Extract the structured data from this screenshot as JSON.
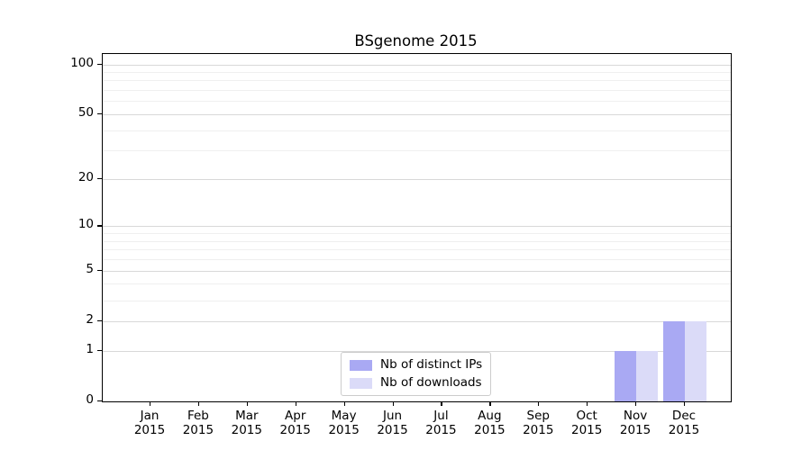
{
  "title": "BSgenome 2015",
  "colors": {
    "distinct_ips": "#a9a9f3",
    "downloads": "#dbdbf8",
    "grid_major": "#d8d8d8",
    "grid_minor": "#efefef",
    "axis_frame": "#000000",
    "legend_border": "#cccccc",
    "background": "#ffffff",
    "text": "#000000"
  },
  "legend": {
    "entries": [
      {
        "label": "Nb of distinct IPs",
        "color": "#a9a9f3"
      },
      {
        "label": "Nb of downloads",
        "color": "#dbdbf8"
      }
    ]
  },
  "chart_data": {
    "type": "bar",
    "title": "BSgenome 2015",
    "categories": [
      {
        "month": "Jan",
        "year": "2015"
      },
      {
        "month": "Feb",
        "year": "2015"
      },
      {
        "month": "Mar",
        "year": "2015"
      },
      {
        "month": "Apr",
        "year": "2015"
      },
      {
        "month": "May",
        "year": "2015"
      },
      {
        "month": "Jun",
        "year": "2015"
      },
      {
        "month": "Jul",
        "year": "2015"
      },
      {
        "month": "Aug",
        "year": "2015"
      },
      {
        "month": "Sep",
        "year": "2015"
      },
      {
        "month": "Oct",
        "year": "2015"
      },
      {
        "month": "Nov",
        "year": "2015"
      },
      {
        "month": "Dec",
        "year": "2015"
      }
    ],
    "series": [
      {
        "name": "Nb of distinct IPs",
        "color": "#a9a9f3",
        "values": [
          0,
          0,
          0,
          0,
          0,
          0,
          0,
          0,
          0,
          0,
          1,
          2
        ]
      },
      {
        "name": "Nb of downloads",
        "color": "#dbdbf8",
        "values": [
          0,
          0,
          0,
          0,
          0,
          0,
          0,
          0,
          0,
          0,
          1,
          2
        ]
      }
    ],
    "xlabel": "",
    "ylabel": "",
    "y_scale": "log1p",
    "ylim": [
      0,
      115.5
    ],
    "y_ticks": [
      0,
      1,
      2,
      5,
      10,
      20,
      50,
      100
    ],
    "y_major_gridlines": [
      1,
      2,
      5,
      10,
      20,
      50,
      100
    ],
    "y_minor_gridlines": [
      3,
      4,
      6,
      7,
      8,
      9,
      30,
      40,
      60,
      70,
      80,
      90
    ],
    "grid": true,
    "legend_position": "bottom-center"
  }
}
